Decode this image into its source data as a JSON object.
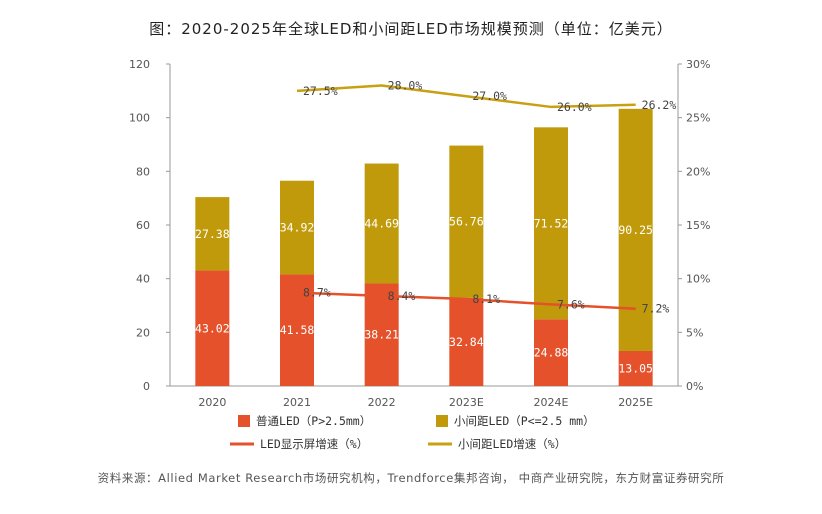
{
  "title": "图：2020-2025年全球LED和小间距LED市场规模预测（单位：亿美元）",
  "source": "资料来源：Allied Market Research市场研究机构，Trendforce集邦咨询， 中商产业研究院，东方财富证券研究所",
  "colors": {
    "regular_led": "#e4512b",
    "small_pitch_led": "#c09a0b",
    "led_growth_line": "#e4512b",
    "small_pitch_growth_line": "#c8a012",
    "axis": "#999999"
  },
  "chart_data": {
    "type": "bar",
    "stacked": true,
    "categories": [
      "2020",
      "2021",
      "2022",
      "2023E",
      "2024E",
      "2025E"
    ],
    "series": [
      {
        "name": "普通LED（P>2.5mm）",
        "key": "regular",
        "axis": "left",
        "values": [
          43.02,
          41.58,
          38.21,
          32.84,
          24.88,
          13.05
        ],
        "labels": [
          "43.02",
          "41.58",
          "38.21",
          "32.84",
          "24.88",
          "13.05"
        ]
      },
      {
        "name": "小间距LED（P<=2.5 mm）",
        "key": "small",
        "axis": "left",
        "values": [
          27.38,
          34.92,
          44.69,
          56.76,
          71.52,
          90.25
        ],
        "labels": [
          "27.38",
          "34.92",
          "44.69",
          "56.76",
          "71.52",
          "90.25"
        ]
      }
    ],
    "lines": [
      {
        "name": "LED显示屏增速（%）",
        "key": "led_growth",
        "axis": "right",
        "start_index": 1,
        "values": [
          8.7,
          8.4,
          8.1,
          7.6,
          7.2
        ],
        "labels": [
          "8.7%",
          "8.4%",
          "8.1%",
          "7.6%",
          "7.2%"
        ]
      },
      {
        "name": "小间距LED增速（%）",
        "key": "small_growth",
        "axis": "right",
        "start_index": 1,
        "values": [
          27.5,
          28.0,
          27.0,
          26.0,
          26.2
        ],
        "labels": [
          "27.5%",
          "28.0%",
          "27.0%",
          "26.0%",
          "26.2%"
        ]
      }
    ],
    "ylim_left": [
      0,
      120
    ],
    "yticks_left": [
      "0",
      "20",
      "40",
      "60",
      "80",
      "100",
      "120"
    ],
    "ylim_right": [
      0,
      30
    ],
    "yticks_right": [
      "0%",
      "5%",
      "10%",
      "15%",
      "20%",
      "25%",
      "30%"
    ],
    "legend_position": "bottom"
  }
}
